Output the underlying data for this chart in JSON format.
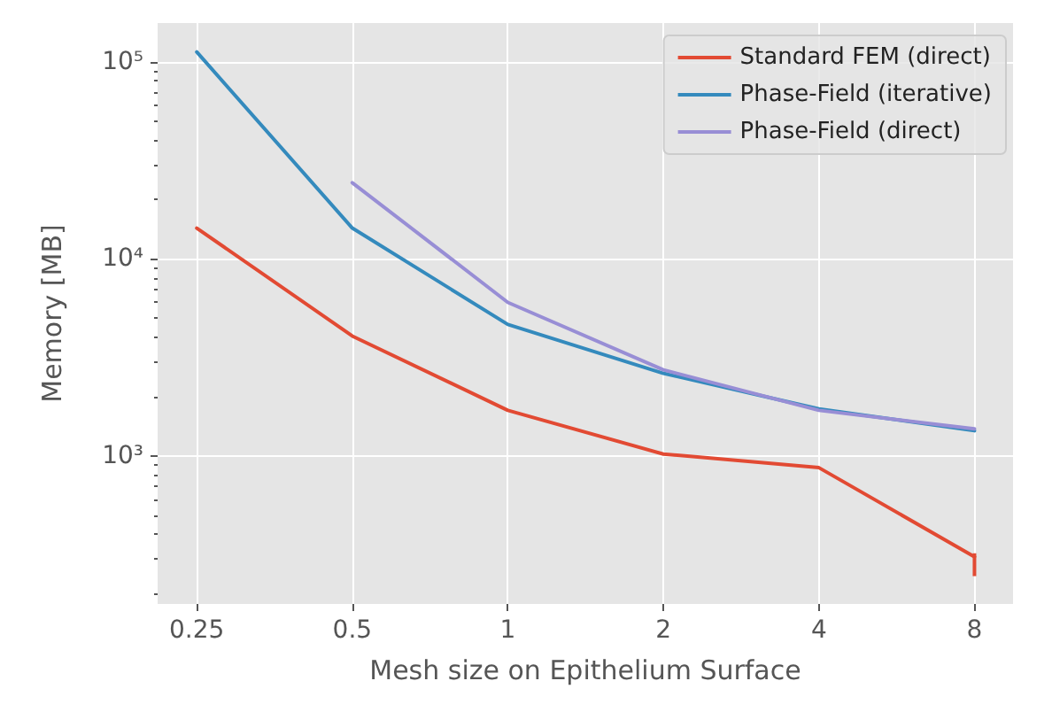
{
  "chart_data": {
    "type": "line",
    "xlabel": "Mesh size on Epithelium Surface",
    "ylabel": "Memory [MB]",
    "x": [
      0.25,
      0.5,
      1,
      2,
      4,
      8
    ],
    "series": [
      {
        "name": "Standard FEM (direct)",
        "color": "#e24a33",
        "values": [
          14300,
          4050,
          1700,
          1020,
          870,
          307
        ],
        "errors": [
          null,
          null,
          null,
          null,
          null,
          [
            245,
            320
          ]
        ]
      },
      {
        "name": "Phase-Field (iterative)",
        "color": "#348abd",
        "values": [
          112000,
          14300,
          4640,
          2620,
          1730,
          1340
        ]
      },
      {
        "name": "Phase-Field (direct)",
        "color": "#988ed5",
        "values": [
          null,
          24300,
          6000,
          2730,
          1700,
          1370
        ]
      }
    ],
    "log": "xy",
    "xlim": [
      0.21,
      9.5
    ],
    "ylim": [
      177,
      157000
    ],
    "xticks": [
      0.25,
      0.5,
      1,
      2,
      4,
      8
    ],
    "yticks": [
      {
        "value": 200,
        "label": null
      },
      {
        "value": 300,
        "label": null
      },
      {
        "value": 400,
        "label": null
      },
      {
        "value": 500,
        "label": null
      },
      {
        "value": 600,
        "label": null
      },
      {
        "value": 700,
        "label": null
      },
      {
        "value": 800,
        "label": null
      },
      {
        "value": 900,
        "label": null
      },
      {
        "value": 1000,
        "label": "10³"
      },
      {
        "value": 2000,
        "label": null
      },
      {
        "value": 3000,
        "label": null
      },
      {
        "value": 4000,
        "label": null
      },
      {
        "value": 5000,
        "label": null
      },
      {
        "value": 6000,
        "label": null
      },
      {
        "value": 7000,
        "label": null
      },
      {
        "value": 8000,
        "label": null
      },
      {
        "value": 9000,
        "label": null
      },
      {
        "value": 10000,
        "label": "10⁴"
      },
      {
        "value": 20000,
        "label": null
      },
      {
        "value": 30000,
        "label": null
      },
      {
        "value": 40000,
        "label": null
      },
      {
        "value": 50000,
        "label": null
      },
      {
        "value": 60000,
        "label": null
      },
      {
        "value": 70000,
        "label": null
      },
      {
        "value": 80000,
        "label": null
      },
      {
        "value": 90000,
        "label": null
      },
      {
        "value": 100000,
        "label": "10⁵"
      }
    ],
    "grid": true,
    "legend": "top right",
    "marker": "none",
    "line_style": "solid"
  }
}
